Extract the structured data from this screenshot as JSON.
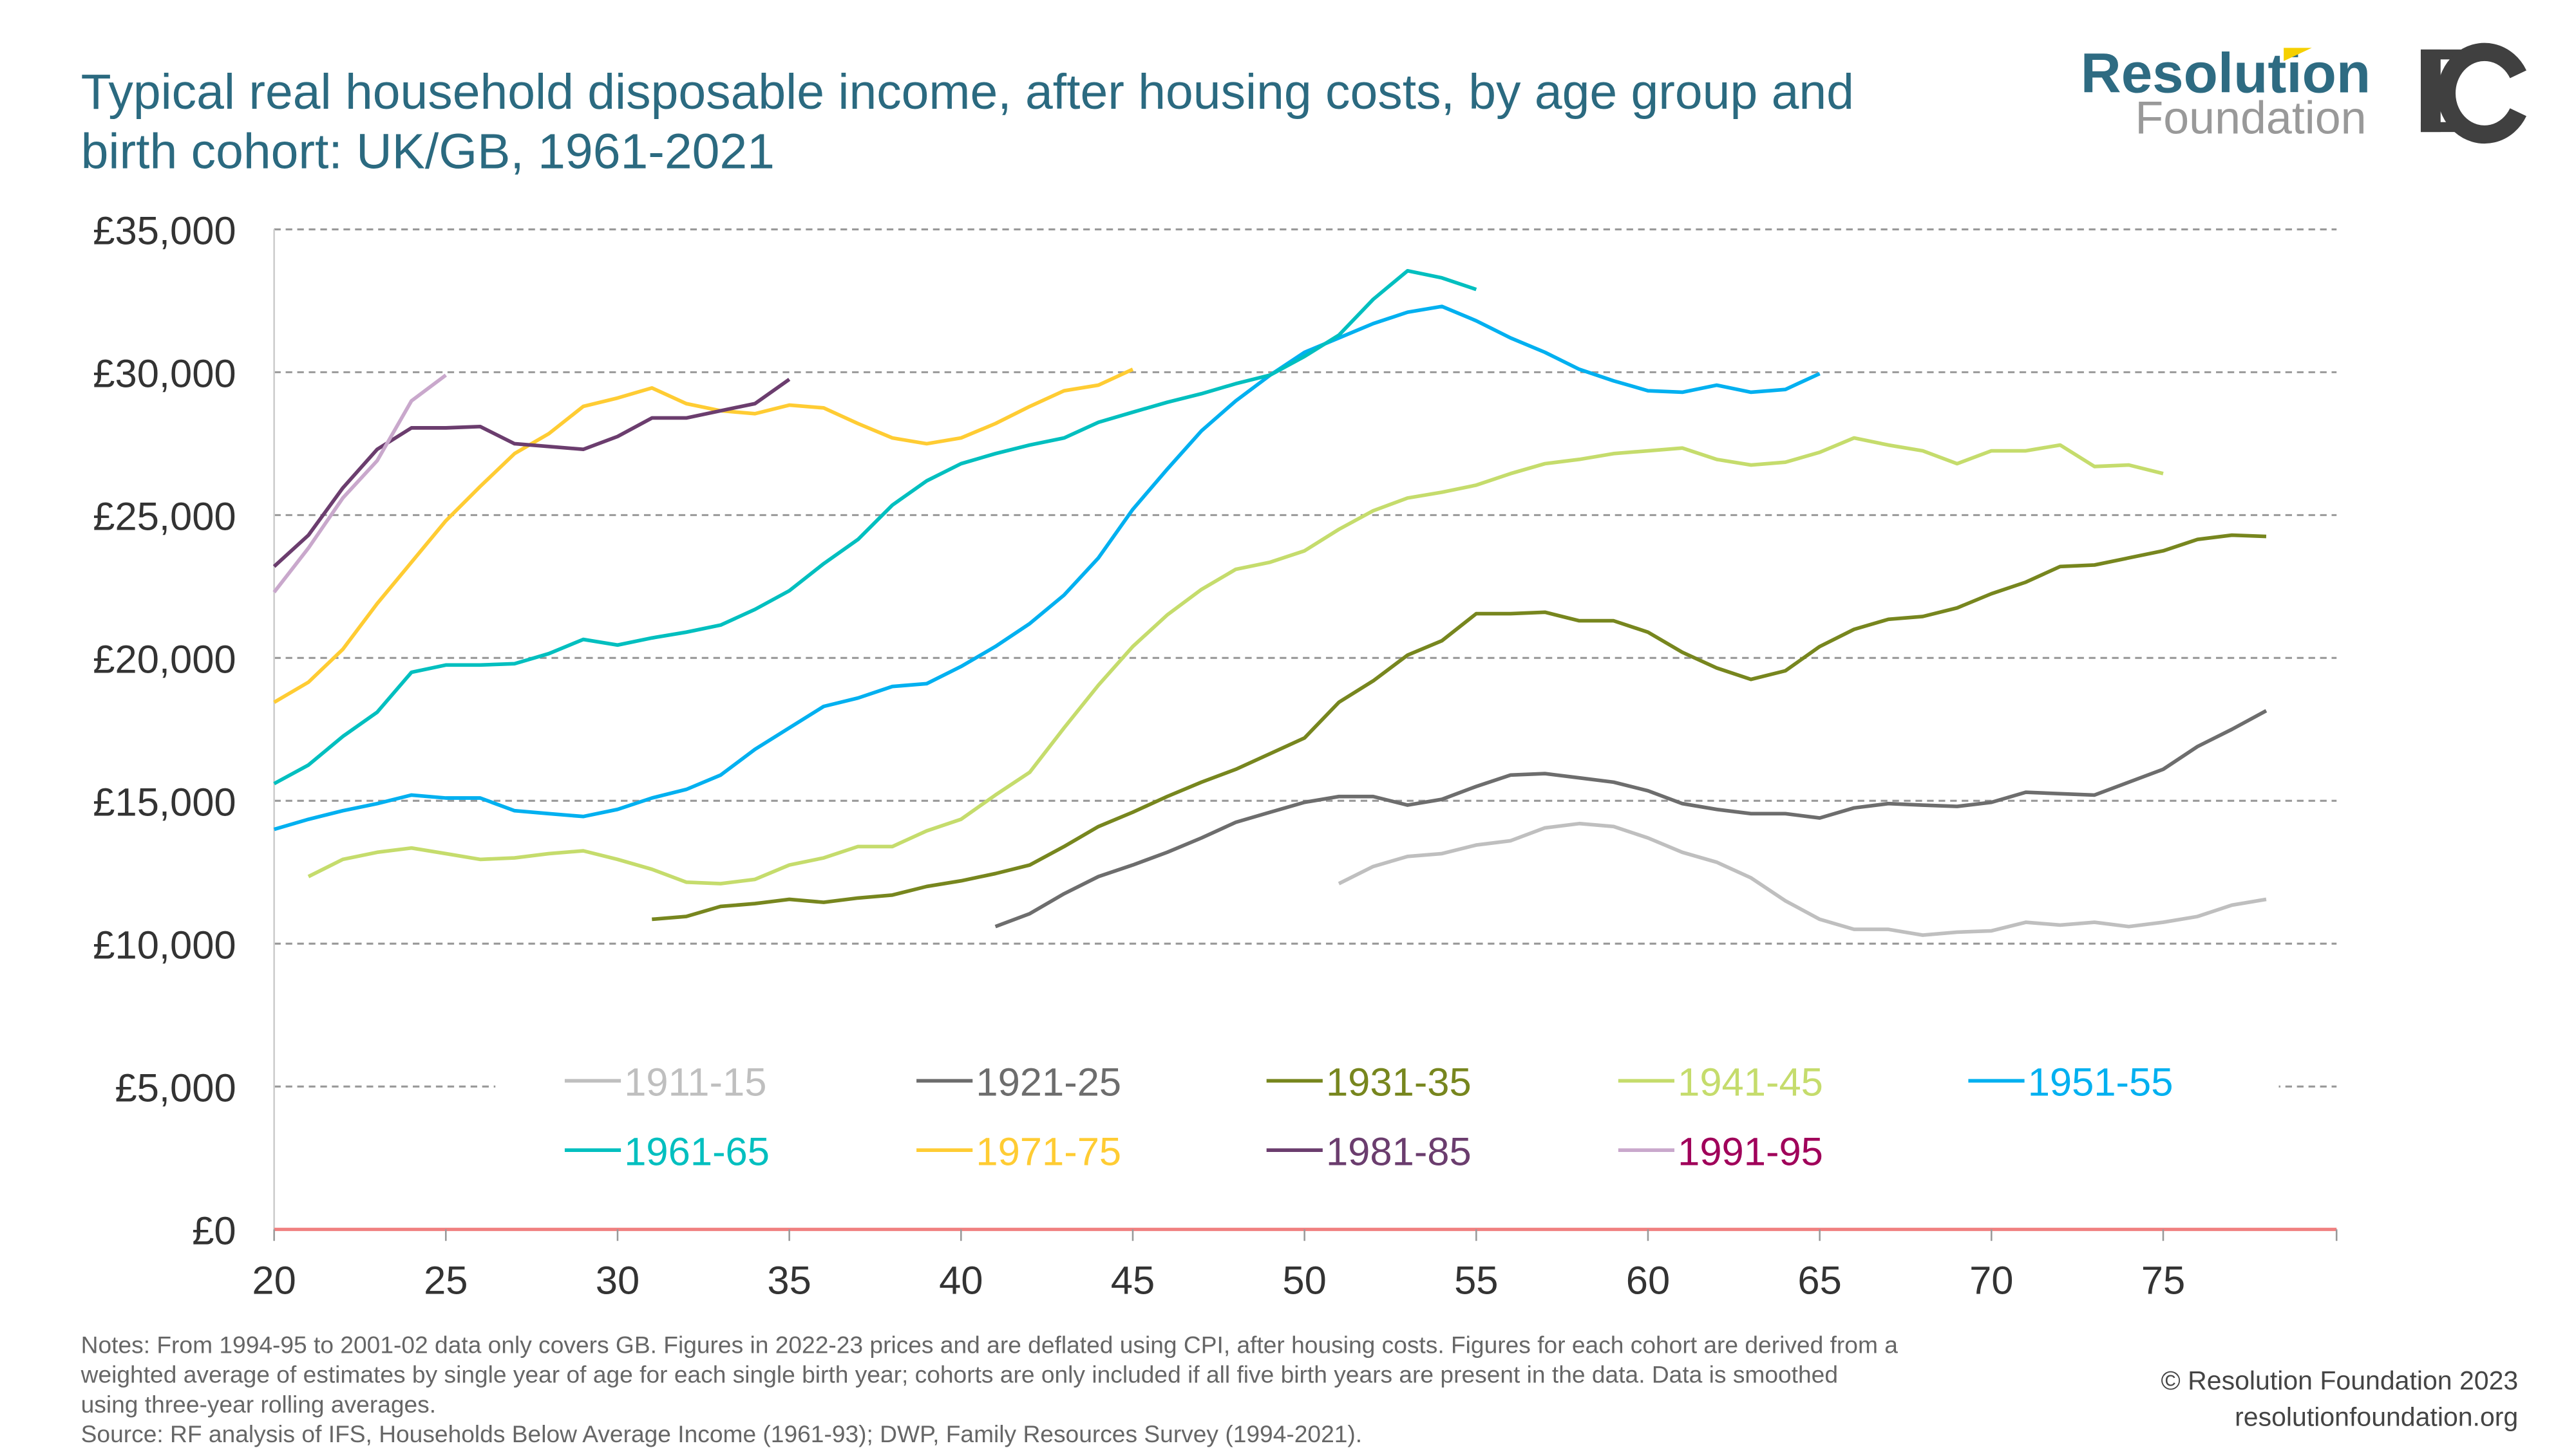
{
  "title_lines": [
    "Typical real household disposable income, after housing costs, by age group and",
    "birth cohort: UK/GB, 1961-2021"
  ],
  "logo": {
    "line1": "Resolution",
    "line2": "Foundation",
    "mark": "IC",
    "accent": "#f5d000",
    "brand_color": "#2e6b82"
  },
  "notes": [
    "Notes: From 1994-95 to 2001-02 data only covers GB. Figures in 2022-23 prices and are deflated using CPI, after housing costs. Figures for each cohort are derived from a",
    "weighted average of estimates by single year of age for each single birth year; cohorts are only included if all five birth years are present in the data. Data is smoothed",
    "using three-year rolling averages.",
    "Source: RF analysis of IFS, Households Below Average Income (1961-93); DWP, Family Resources Survey (1994-2021)."
  ],
  "copyright": "© Resolution Foundation 2023",
  "website": "resolutionfoundation.org",
  "chart_data": {
    "type": "line",
    "title": "Typical real household disposable income, after housing costs, by age group and birth cohort: UK/GB, 1961-2021",
    "xlabel": "",
    "ylabel": "",
    "xlim": [
      20,
      80
    ],
    "ylim": [
      0,
      35000
    ],
    "x_ticks": [
      "20",
      "25",
      "30",
      "35",
      "40",
      "45",
      "50",
      "55",
      "60",
      "65",
      "70",
      "75"
    ],
    "y_ticks": [
      "£0",
      "£5,000",
      "£10,000",
      "£15,000",
      "£20,000",
      "£25,000",
      "£30,000",
      "£35,000"
    ],
    "grid": "horizontal dashed",
    "legend_placement": "inside-bottom",
    "series": [
      {
        "name": "1911-15",
        "color": "#bfbfbf",
        "label_color": "#bfbfbf",
        "start_age": 51,
        "values": [
          12100,
          12700,
          13050,
          13150,
          13450,
          13600,
          14050,
          14200,
          14100,
          13700,
          13200,
          12850,
          12300,
          11500,
          10850,
          10500,
          10500,
          10300,
          10400,
          10450,
          10750,
          10650,
          10750,
          10600,
          10750,
          10950,
          11350,
          11550
        ]
      },
      {
        "name": "1921-25",
        "color": "#6d6d6d",
        "label_color": "#6d6d6d",
        "start_age": 41,
        "values": [
          10600,
          11050,
          11750,
          12350,
          12750,
          13200,
          13700,
          14250,
          14600,
          14950,
          15150,
          15150,
          14850,
          15050,
          15500,
          15900,
          15950,
          15800,
          15650,
          15350,
          14900,
          14700,
          14550,
          14550,
          14400,
          14750,
          14900,
          14850,
          14800,
          14950,
          15300,
          15250,
          15200,
          15650,
          16100,
          16900,
          17500,
          18150
        ]
      },
      {
        "name": "1931-35",
        "color": "#77861e",
        "label_color": "#77861e",
        "start_age": 31,
        "values": [
          10850,
          10950,
          11300,
          11400,
          11550,
          11450,
          11600,
          11700,
          12000,
          12200,
          12450,
          12750,
          13400,
          14100,
          14600,
          15150,
          15650,
          16100,
          16650,
          17200,
          18450,
          19200,
          20100,
          20600,
          21550,
          21550,
          21600,
          21300,
          21300,
          20900,
          20200,
          19650,
          19250,
          19550,
          20400,
          21000,
          21350,
          21450,
          21750,
          22250,
          22650,
          23200,
          23250,
          23500,
          23750,
          24150,
          24300,
          24250
        ]
      },
      {
        "name": "1941-45",
        "color": "#c5dc6c",
        "label_color": "#c5dc6c",
        "start_age": 21,
        "values": [
          12350,
          12950,
          13200,
          13350,
          13150,
          12950,
          13000,
          13150,
          13250,
          12950,
          12600,
          12150,
          12100,
          12250,
          12750,
          13000,
          13400,
          13400,
          13950,
          14350,
          15200,
          16000,
          17550,
          19050,
          20400,
          21500,
          22400,
          23100,
          23350,
          23750,
          24500,
          25150,
          25600,
          25800,
          26050,
          26450,
          26800,
          26950,
          27150,
          27250,
          27350,
          26950,
          26750,
          26850,
          27200,
          27700,
          27450,
          27250,
          26800,
          27250,
          27250,
          27450,
          26700,
          26750,
          26450
        ]
      },
      {
        "name": "1951-55",
        "color": "#00b0f0",
        "label_color": "#00b0f0",
        "start_age": 20,
        "values": [
          14000,
          14350,
          14650,
          14900,
          15200,
          15100,
          15100,
          14650,
          14550,
          14450,
          14700,
          15100,
          15400,
          15900,
          16800,
          17550,
          18300,
          18600,
          19000,
          19100,
          19700,
          20400,
          21200,
          22200,
          23500,
          25200,
          26600,
          27950,
          29000,
          29900,
          30700,
          31200,
          31700,
          32100,
          32300,
          31800,
          31200,
          30700,
          30100,
          29700,
          29350,
          29300,
          29550,
          29300,
          29400,
          29950
        ]
      },
      {
        "name": "1961-65",
        "color": "#00bfbf",
        "label_color": "#00bfbf",
        "start_age": 20,
        "values": [
          15600,
          16250,
          17250,
          18100,
          19500,
          19750,
          19750,
          19800,
          20150,
          20650,
          20450,
          20700,
          20900,
          21150,
          21700,
          22350,
          23300,
          24150,
          25350,
          26200,
          26800,
          27150,
          27450,
          27700,
          28250,
          28600,
          28950,
          29250,
          29600,
          29900,
          30550,
          31300,
          32550,
          33550,
          33300,
          32900
        ]
      },
      {
        "name": "1971-75",
        "color": "#ffcc33",
        "label_color": "#ffcc33",
        "start_age": 20,
        "values": [
          18450,
          19150,
          20300,
          21900,
          23350,
          24800,
          26000,
          27150,
          27850,
          28800,
          29100,
          29450,
          28900,
          28650,
          28550,
          28850,
          28750,
          28200,
          27700,
          27500,
          27700,
          28200,
          28800,
          29350,
          29550,
          30100
        ]
      },
      {
        "name": "1981-85",
        "color": "#6b3d6e",
        "label_color": "#6b3d6e",
        "start_age": 20,
        "values": [
          23200,
          24300,
          25950,
          27300,
          28050,
          28050,
          28100,
          27500,
          27400,
          27300,
          27750,
          28400,
          28400,
          28650,
          28900,
          29750
        ]
      },
      {
        "name": "1991-95",
        "color": "#c9a8cc",
        "label_color": "#a0005a",
        "start_age": 20,
        "values": [
          22300,
          23850,
          25600,
          26900,
          29000,
          29900
        ]
      }
    ]
  }
}
